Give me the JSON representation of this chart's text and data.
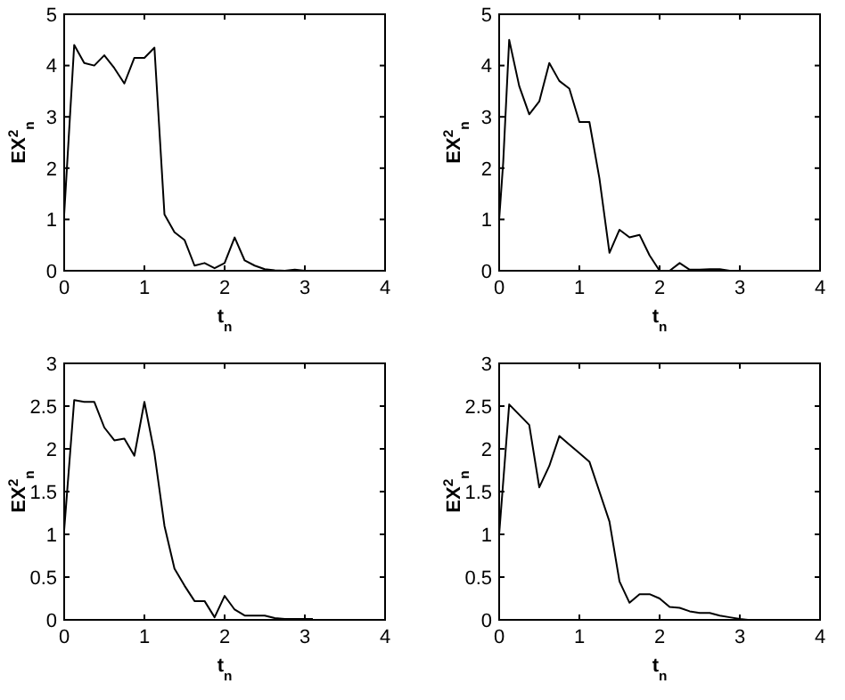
{
  "chart_data": [
    {
      "type": "line",
      "xlabel": "t$_{n}$",
      "ylabel": "EX$^{2}$$_{n}$",
      "xlim": [
        0,
        4
      ],
      "ylim": [
        0,
        5
      ],
      "xticks": [
        0,
        1,
        2,
        3,
        4
      ],
      "yticks": [
        0,
        1,
        2,
        3,
        4,
        5
      ],
      "series": [
        {
          "color": "#000000",
          "x": [
            0,
            0.125,
            0.25,
            0.375,
            0.5,
            0.625,
            0.75,
            0.875,
            1.0,
            1.125,
            1.25,
            1.375,
            1.5,
            1.625,
            1.75,
            1.875,
            2.0,
            2.125,
            2.25,
            2.375,
            2.5,
            2.625,
            2.75,
            2.875,
            3.0
          ],
          "values": [
            1.1,
            4.4,
            4.05,
            4.0,
            4.2,
            3.95,
            3.65,
            4.15,
            4.15,
            4.35,
            1.1,
            0.75,
            0.6,
            0.1,
            0.15,
            0.05,
            0.15,
            0.65,
            0.2,
            0.1,
            0.03,
            0.01,
            0,
            0.02,
            0
          ]
        }
      ]
    },
    {
      "type": "line",
      "xlabel": "t$_{n}$",
      "ylabel": "EX$^{2}$$_{n}$",
      "xlim": [
        0,
        4
      ],
      "ylim": [
        0,
        5
      ],
      "xticks": [
        0,
        1,
        2,
        3,
        4
      ],
      "yticks": [
        0,
        1,
        2,
        3,
        4,
        5
      ],
      "series": [
        {
          "color": "#000000",
          "x": [
            0,
            0.05,
            0.125,
            0.25,
            0.375,
            0.5,
            0.625,
            0.75,
            0.875,
            1.0,
            1.125,
            1.25,
            1.375,
            1.5,
            1.625,
            1.75,
            1.875,
            2.0,
            2.125,
            2.25,
            2.375,
            2.5,
            2.625,
            2.75,
            2.875
          ],
          "values": [
            1.0,
            2.1,
            4.5,
            3.6,
            3.05,
            3.3,
            4.05,
            3.7,
            3.55,
            2.9,
            2.9,
            1.8,
            0.35,
            0.8,
            0.65,
            0.7,
            0.3,
            0,
            0,
            0.15,
            0.02,
            0.02,
            0.03,
            0.03,
            0
          ]
        }
      ]
    },
    {
      "type": "line",
      "xlabel": "t$_{n}$",
      "ylabel": "EX$^{2}$$_{n}$",
      "xlim": [
        0,
        4
      ],
      "ylim": [
        0,
        3
      ],
      "xticks": [
        0,
        1,
        2,
        3,
        4
      ],
      "yticks": [
        0,
        0.5,
        1,
        1.5,
        2,
        2.5,
        3
      ],
      "series": [
        {
          "color": "#000000",
          "x": [
            0,
            0.125,
            0.25,
            0.375,
            0.5,
            0.625,
            0.75,
            0.875,
            1.0,
            1.125,
            1.25,
            1.375,
            1.5,
            1.625,
            1.75,
            1.875,
            2.0,
            2.125,
            2.25,
            2.375,
            2.5,
            2.625,
            2.75,
            3.1
          ],
          "values": [
            1.05,
            2.57,
            2.55,
            2.55,
            2.25,
            2.1,
            2.12,
            1.92,
            2.55,
            1.95,
            1.1,
            0.6,
            0.4,
            0.22,
            0.22,
            0.03,
            0.28,
            0.12,
            0.05,
            0.05,
            0.05,
            0.02,
            0.01,
            0.01
          ]
        }
      ]
    },
    {
      "type": "line",
      "xlabel": "t$_{n}$",
      "ylabel": "EX$^{2}$$_{n}$",
      "xlim": [
        0,
        4
      ],
      "ylim": [
        0,
        3
      ],
      "xticks": [
        0,
        1,
        2,
        3,
        4
      ],
      "yticks": [
        0,
        0.5,
        1,
        1.5,
        2,
        2.5,
        3
      ],
      "series": [
        {
          "color": "#000000",
          "x": [
            0,
            0.125,
            0.25,
            0.375,
            0.5,
            0.625,
            0.75,
            0.875,
            1.0,
            1.125,
            1.25,
            1.375,
            1.5,
            1.625,
            1.75,
            1.875,
            2.0,
            2.125,
            2.25,
            2.375,
            2.5,
            2.625,
            2.75,
            2.875,
            3.0,
            3.1
          ],
          "values": [
            1.0,
            2.52,
            2.4,
            2.28,
            1.55,
            1.8,
            2.15,
            2.05,
            1.95,
            1.85,
            1.5,
            1.15,
            0.45,
            0.2,
            0.3,
            0.3,
            0.25,
            0.15,
            0.14,
            0.1,
            0.08,
            0.08,
            0.05,
            0.03,
            0.01,
            0
          ]
        }
      ]
    }
  ]
}
